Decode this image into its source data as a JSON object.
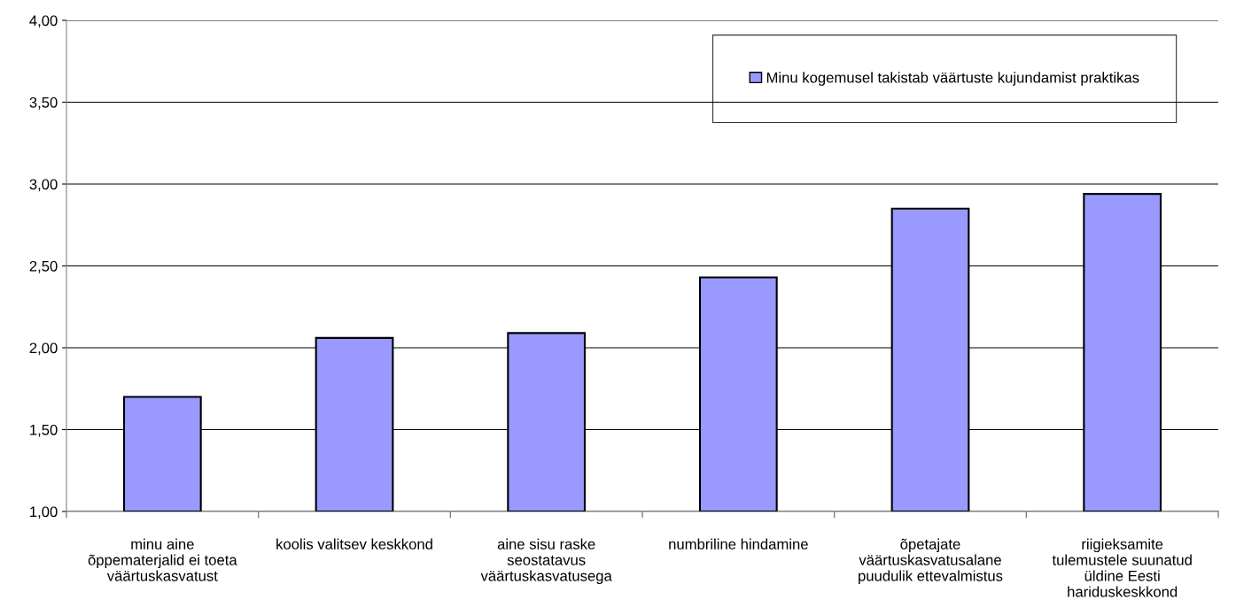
{
  "chart_data": {
    "type": "bar",
    "categories": [
      "minu aine\nõppematerjalid ei toeta\nväärtuskasvatust",
      "koolis valitsev keskkond",
      "aine sisu raske\nseostatavus\nväärtuskasvatusega",
      "numbriline hindamine",
      "õpetajate\nväärtuskasvatusalane\npuudulik ettevalmistus",
      "riigieksamite\ntulemustele suunatud\nüldine Eesti\nhariduskeskkond"
    ],
    "series": [
      {
        "name": "Minu kogemusel takistab väärtuste kujundamist praktikas",
        "color": "#9999ff",
        "values": [
          1.7,
          2.06,
          2.09,
          2.43,
          2.85,
          2.94
        ]
      }
    ],
    "ylim": [
      1.0,
      4.0
    ],
    "yticks": [
      {
        "value": 1.0,
        "label": "1,00"
      },
      {
        "value": 1.5,
        "label": "1,50"
      },
      {
        "value": 2.0,
        "label": "2,00"
      },
      {
        "value": 2.5,
        "label": "2,50"
      },
      {
        "value": 3.0,
        "label": "3,00"
      },
      {
        "value": 3.5,
        "label": "3,50"
      },
      {
        "value": 4.0,
        "label": "4,00"
      }
    ],
    "grid": "y",
    "legend": "top right"
  }
}
